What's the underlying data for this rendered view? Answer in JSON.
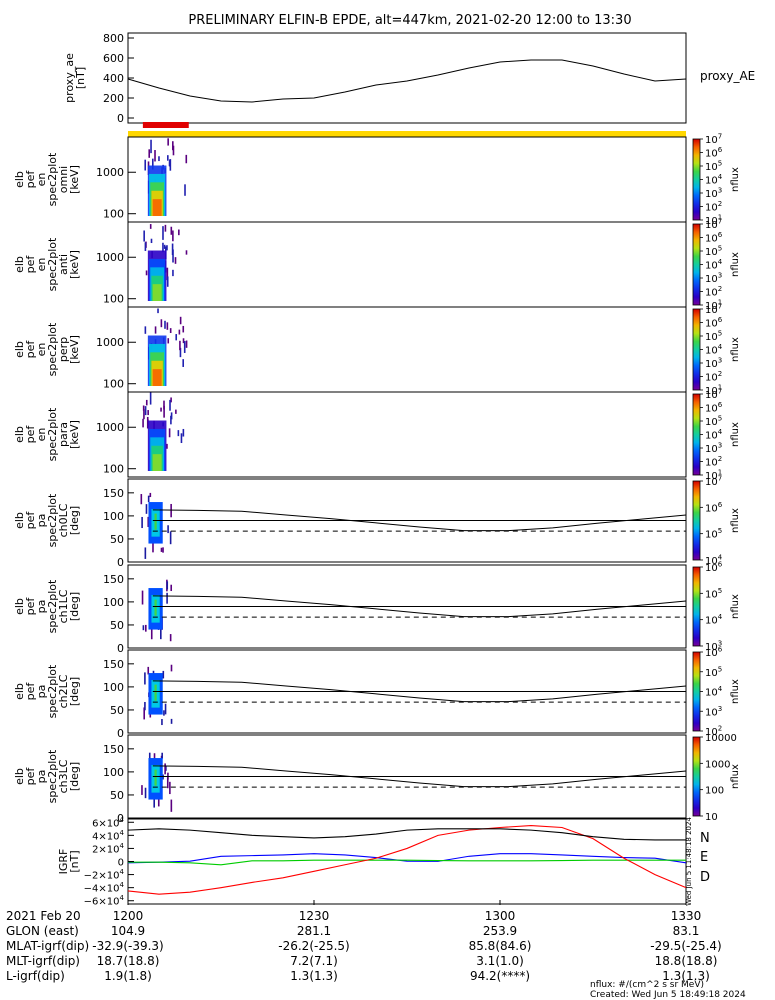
{
  "title": "PRELIMINARY ELFIN-B EPDE, alt=447km, 2021-02-20 12:00 to 13:30",
  "colors": {
    "red_bar": "#e00000",
    "yellow_bar": "#ffd700",
    "igrf_N": "#0000ff",
    "igrf_E": "#00cc00",
    "igrf_D": "#ff0000"
  },
  "chart_data": [
    {
      "type": "line",
      "panel": "proxy_ae",
      "ylabel_lines": [
        "proxy_ae",
        "[nT]"
      ],
      "legend": "proxy_AE",
      "ylim": [
        -50,
        850
      ],
      "yticks": [
        "0",
        "200",
        "400",
        "600",
        "800"
      ],
      "x_minutes": [
        0,
        5,
        10,
        15,
        20,
        25,
        30,
        35,
        40,
        45,
        50,
        55,
        60,
        65,
        70,
        75,
        80,
        85,
        90
      ],
      "values": [
        390,
        300,
        220,
        170,
        160,
        190,
        200,
        260,
        330,
        370,
        430,
        500,
        560,
        580,
        580,
        520,
        440,
        370,
        390
      ]
    },
    {
      "type": "heatmap",
      "panel": "spectra",
      "panels": [
        {
          "ylabel_lines": [
            "elb",
            "pef",
            "en",
            "spec2plot",
            "omni",
            "[keV]"
          ],
          "yticks": [
            "100",
            "1000"
          ],
          "cbar_ticks": [
            "10",
            "10",
            "10",
            "10",
            "10",
            "10",
            "10"
          ],
          "cbar_exps": [
            "1",
            "2",
            "3",
            "4",
            "5",
            "6",
            "7"
          ],
          "cbar_label": "nflux",
          "log": true
        },
        {
          "ylabel_lines": [
            "elb",
            "pef",
            "en",
            "spec2plot",
            "anti",
            "[keV]"
          ],
          "yticks": [
            "100",
            "1000"
          ],
          "cbar_ticks": [
            "10",
            "10",
            "10",
            "10",
            "10",
            "10",
            "10"
          ],
          "cbar_exps": [
            "1",
            "2",
            "3",
            "4",
            "5",
            "6",
            "7"
          ],
          "cbar_label": "nflux",
          "log": true
        },
        {
          "ylabel_lines": [
            "elb",
            "pef",
            "en",
            "spec2plot",
            "perp",
            "[keV]"
          ],
          "yticks": [
            "100",
            "1000"
          ],
          "cbar_ticks": [
            "10",
            "10",
            "10",
            "10",
            "10",
            "10",
            "10"
          ],
          "cbar_exps": [
            "1",
            "2",
            "3",
            "4",
            "5",
            "6",
            "7"
          ],
          "cbar_label": "nflux",
          "log": true
        },
        {
          "ylabel_lines": [
            "elb",
            "pef",
            "en",
            "spec2plot",
            "para",
            "[keV]"
          ],
          "yticks": [
            "100",
            "1000"
          ],
          "cbar_ticks": [
            "10",
            "10",
            "10",
            "10",
            "10",
            "10",
            "10"
          ],
          "cbar_exps": [
            "1",
            "2",
            "3",
            "4",
            "5",
            "6",
            "7"
          ],
          "cbar_label": "nflux",
          "log": true
        }
      ]
    },
    {
      "type": "heatmap",
      "panel": "pitch_angle",
      "ylim": [
        0,
        180
      ],
      "yticks": [
        "0",
        "50",
        "100",
        "150"
      ],
      "solid_line_deg": [
        113,
        112,
        110,
        102,
        94,
        85,
        76,
        68,
        68,
        74,
        84,
        93,
        102
      ],
      "dashed_line_deg": 67,
      "panels": [
        {
          "ylabel_lines": [
            "elb",
            "pef",
            "pa",
            "spec2plot",
            "ch0LC",
            "[deg]"
          ],
          "cbar_ticks": [
            "10",
            "10",
            "10",
            "10"
          ],
          "cbar_exps": [
            "4",
            "5",
            "6",
            "7"
          ],
          "cbar_label": "nflux"
        },
        {
          "ylabel_lines": [
            "elb",
            "pef",
            "pa",
            "spec2plot",
            "ch1LC",
            "[deg]"
          ],
          "cbar_ticks": [
            "10",
            "10",
            "10",
            "10"
          ],
          "cbar_exps": [
            "3",
            "4",
            "5",
            "6"
          ],
          "cbar_label": "nflux"
        },
        {
          "ylabel_lines": [
            "elb",
            "pef",
            "pa",
            "spec2plot",
            "ch2LC",
            "[deg]"
          ],
          "cbar_ticks": [
            "10",
            "10",
            "10",
            "10",
            "10"
          ],
          "cbar_exps": [
            "2",
            "3",
            "4",
            "5",
            "6"
          ],
          "cbar_label": "nflux"
        },
        {
          "ylabel_lines": [
            "elb",
            "pef",
            "pa",
            "spec2plot",
            "ch3LC",
            "[deg]"
          ],
          "cbar_ticks": [
            "10",
            "100",
            "1000",
            "10000"
          ],
          "cbar_exps": [
            "",
            "",
            "",
            ""
          ],
          "cbar_label": "nflux"
        }
      ]
    },
    {
      "type": "line",
      "panel": "igrf",
      "ylabel_lines": [
        "IGRF",
        "[nT]"
      ],
      "ylim": [
        -65000,
        65000
      ],
      "yticks": [
        {
          "base": "6×10",
          "exp": "4"
        },
        {
          "base": "4×10",
          "exp": "4"
        },
        {
          "base": "2×10",
          "exp": "4"
        },
        {
          "base": "0",
          "exp": ""
        },
        {
          "base": "−2×10",
          "exp": "4"
        },
        {
          "base": "−4×10",
          "exp": "4"
        },
        {
          "base": "−6×10",
          "exp": "4"
        }
      ],
      "x_minutes": [
        0,
        5,
        10,
        15,
        20,
        25,
        30,
        35,
        40,
        45,
        50,
        55,
        60,
        65,
        70,
        75,
        80,
        85,
        90
      ],
      "series": [
        {
          "name": "N",
          "values": [
            -2000,
            -1000,
            500,
            8000,
            9000,
            10000,
            12000,
            10000,
            6000,
            500,
            200,
            8000,
            12000,
            12000,
            10000,
            8000,
            6000,
            5000,
            -2000
          ]
        },
        {
          "name": "E",
          "values": [
            -1000,
            -1000,
            -2000,
            -5000,
            1000,
            1000,
            2000,
            2000,
            2000,
            2000,
            1500,
            1000,
            1000,
            1000,
            1500,
            2000,
            2000,
            2000,
            2000
          ]
        },
        {
          "name": "D",
          "values": [
            -45000,
            -50000,
            -47000,
            -40000,
            -32000,
            -25000,
            -15000,
            -5000,
            5000,
            20000,
            40000,
            48000,
            52000,
            55000,
            52000,
            35000,
            5000,
            -20000,
            -40000
          ]
        },
        {
          "name": "",
          "values": [
            48000,
            50000,
            48000,
            44000,
            40000,
            38000,
            36000,
            38000,
            42000,
            48000,
            50000,
            50000,
            50000,
            48000,
            44000,
            38000,
            34000,
            33000,
            33000
          ]
        }
      ],
      "side_text": "Wed Jun  5 11:48:18 2024"
    }
  ],
  "xaxis": {
    "ticks": [
      "1200",
      "1230",
      "1300",
      "1330"
    ],
    "rows": [
      {
        "label": "2021 Feb 20",
        "values": [
          "1200",
          "1230",
          "1300",
          "1330"
        ]
      },
      {
        "label": "GLON (east)",
        "values": [
          "104.9",
          "281.1",
          "253.9",
          "83.1"
        ]
      },
      {
        "label": "MLAT-igrf(dip)",
        "values": [
          "-32.9(-39.3)",
          "-26.2(-25.5)",
          "85.8(84.6)",
          "-29.5(-25.4)"
        ]
      },
      {
        "label": "MLT-igrf(dip)",
        "values": [
          "18.7(18.8)",
          "7.2(7.1)",
          "3.1(1.0)",
          "18.8(18.8)"
        ]
      },
      {
        "label": "L-igrf(dip)",
        "values": [
          "1.9(1.8)",
          "1.3(1.3)",
          "94.2(****)",
          "1.3(1.3)"
        ]
      }
    ]
  },
  "footer": {
    "units": "nflux: #/(cm^2 s sr MeV)",
    "created": "Created: Wed Jun  5 18:49:18 2024"
  }
}
